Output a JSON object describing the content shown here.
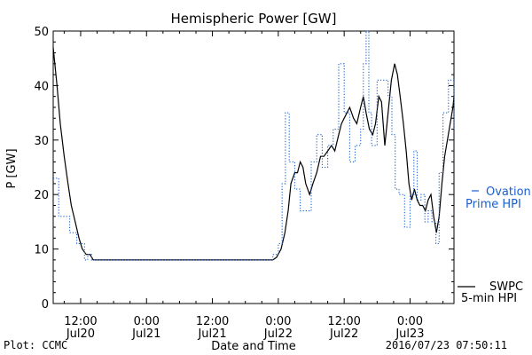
{
  "chart_data": {
    "type": "line",
    "title": "Hemispheric Power [GW]",
    "xlabel": "Date and Time",
    "ylabel": "P [GW]",
    "ylim": [
      0,
      50
    ],
    "yticks": [
      0,
      10,
      20,
      30,
      40,
      50
    ],
    "x_unit": "hours since 2016-07-19 00:00 UTC",
    "xlim": [
      7,
      80
    ],
    "xticks": [
      {
        "x": 12,
        "time": "12:00",
        "date": "Jul20"
      },
      {
        "x": 24,
        "time": "0:00",
        "date": "Jul21"
      },
      {
        "x": 36,
        "time": "12:00",
        "date": "Jul21"
      },
      {
        "x": 48,
        "time": "0:00",
        "date": "Jul22"
      },
      {
        "x": 60,
        "time": "12:00",
        "date": "Jul22"
      },
      {
        "x": 72,
        "time": "0:00",
        "date": "Jul23"
      }
    ],
    "series": [
      {
        "name": "SWPC 5-min HPI",
        "color": "#000000",
        "style": "solid",
        "x": [
          7.0,
          7.7,
          8.3,
          9.0,
          9.7,
          10.3,
          11.0,
          11.7,
          12.3,
          13.0,
          13.7,
          14.3,
          15.0,
          20.0,
          25.0,
          30.0,
          35.0,
          40.0,
          45.0,
          47.0,
          47.7,
          48.5,
          49.2,
          49.8,
          50.3,
          51.0,
          51.5,
          52.0,
          52.5,
          53.0,
          53.7,
          54.3,
          55.0,
          55.7,
          56.3,
          57.0,
          57.7,
          58.3,
          59.0,
          59.5,
          60.0,
          60.5,
          61.0,
          61.7,
          62.3,
          63.0,
          63.5,
          64.0,
          64.6,
          65.2,
          65.7,
          66.3,
          66.8,
          67.4,
          68.0,
          68.6,
          69.2,
          69.7,
          70.2,
          70.8,
          71.3,
          71.8,
          72.3,
          72.8,
          73.3,
          73.8,
          74.3,
          74.8,
          75.3,
          75.8,
          76.3,
          76.8,
          77.3,
          77.8,
          78.3,
          78.8,
          79.3,
          79.8,
          80.0
        ],
        "y": [
          47,
          40,
          33,
          27,
          22,
          18,
          15,
          12,
          10,
          9,
          9,
          8,
          8,
          8,
          8,
          8,
          8,
          8,
          8,
          8,
          8.5,
          10,
          13,
          17,
          22,
          24,
          24,
          26,
          25,
          22,
          20,
          22,
          24,
          27,
          27,
          28,
          29,
          28,
          31,
          33,
          34,
          35,
          36,
          34,
          33,
          36,
          38,
          35,
          32,
          31,
          33,
          38,
          37,
          29,
          35,
          41,
          44,
          42,
          38,
          33,
          28,
          22,
          19,
          21,
          19,
          18,
          18,
          17,
          19,
          20,
          16,
          13,
          16,
          22,
          27,
          30,
          33,
          36,
          38
        ]
      },
      {
        "name": "Ovation Prime HPI",
        "color": "#1a5fd0",
        "style": "dotted-step",
        "x": [
          7.0,
          7.5,
          8.0,
          9.0,
          10.0,
          10.7,
          11.3,
          12.0,
          12.7,
          13.3,
          14.0,
          15.0,
          46.0,
          46.5,
          47.0,
          48.0,
          48.7,
          49.3,
          50.0,
          51.0,
          52.0,
          53.0,
          54.0,
          55.0,
          56.0,
          57.0,
          58.0,
          59.0,
          59.5,
          60.0,
          61.0,
          62.0,
          63.0,
          63.5,
          64.0,
          64.5,
          65.0,
          66.0,
          67.0,
          68.0,
          68.7,
          69.3,
          70.0,
          71.0,
          72.0,
          72.7,
          73.3,
          74.0,
          74.7,
          75.3,
          76.0,
          76.7,
          77.3,
          78.0,
          79.0,
          80.0
        ],
        "y": [
          23,
          23,
          16,
          16,
          13,
          13,
          11,
          11,
          8,
          9,
          8,
          8,
          8,
          8,
          9,
          11,
          22,
          35,
          26,
          21,
          17,
          17,
          26,
          31,
          25,
          29,
          32,
          44,
          44,
          35,
          26,
          29,
          32,
          44,
          50,
          35,
          29,
          41,
          41,
          38,
          31,
          21,
          20,
          14,
          20,
          28,
          19,
          20,
          15,
          17,
          15,
          11,
          24,
          35,
          41,
          32
        ]
      }
    ],
    "legend": [
      {
        "line": "solid",
        "label_lines": [
          "SWPC",
          "5-min HPI"
        ],
        "color": "#000000",
        "position": "bottom-right"
      },
      {
        "line": "dashed",
        "label_lines": [
          "Ovation",
          "Prime HPI"
        ],
        "color": "#1a5fd0",
        "position": "right"
      }
    ]
  },
  "footer": {
    "left": "Plot: CCMC",
    "right": "2016/07/23 07:50:11"
  }
}
